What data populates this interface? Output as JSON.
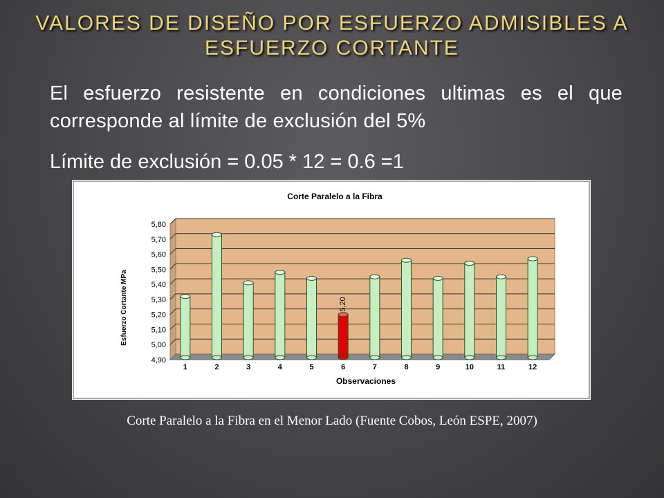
{
  "slide": {
    "title": "VALORES DE DISEÑO POR ESFUERZO ADMISIBLES A ESFUERZO CORTANTE",
    "paragraph": "El esfuerzo resistente en condiciones ultimas es el que corresponde al límite de exclusión del 5%",
    "formula": "Límite de exclusión = 0.05 * 12 = 0.6 =1",
    "caption": "Corte Paralelo a la Fibra en el Menor Lado (Fuente Cobos, León ESPE, 2007)"
  },
  "chart_data": {
    "type": "bar",
    "title": "Corte Paralelo a la Fibra",
    "xlabel": "Observaciones",
    "ylabel": "Esfuerzo Cortante MPa",
    "categories": [
      "1",
      "2",
      "3",
      "4",
      "5",
      "6",
      "7",
      "8",
      "9",
      "10",
      "11",
      "12"
    ],
    "values": [
      5.32,
      5.73,
      5.41,
      5.48,
      5.44,
      5.2,
      5.45,
      5.56,
      5.44,
      5.54,
      5.45,
      5.57
    ],
    "highlight_index": 5,
    "highlight_label": "5,20",
    "ylim": [
      4.9,
      5.8
    ],
    "yticks": [
      "4,90",
      "5,00",
      "5,10",
      "5,20",
      "5,30",
      "5,40",
      "5,50",
      "5,60",
      "5,70",
      "5,80"
    ],
    "grid": true,
    "colors": {
      "bar": "#c6efc1",
      "bar_edge": "#2f4f2f",
      "highlight": "#e00000",
      "plot_bg": "#e3b78a",
      "floor": "#8a8a8a"
    }
  }
}
